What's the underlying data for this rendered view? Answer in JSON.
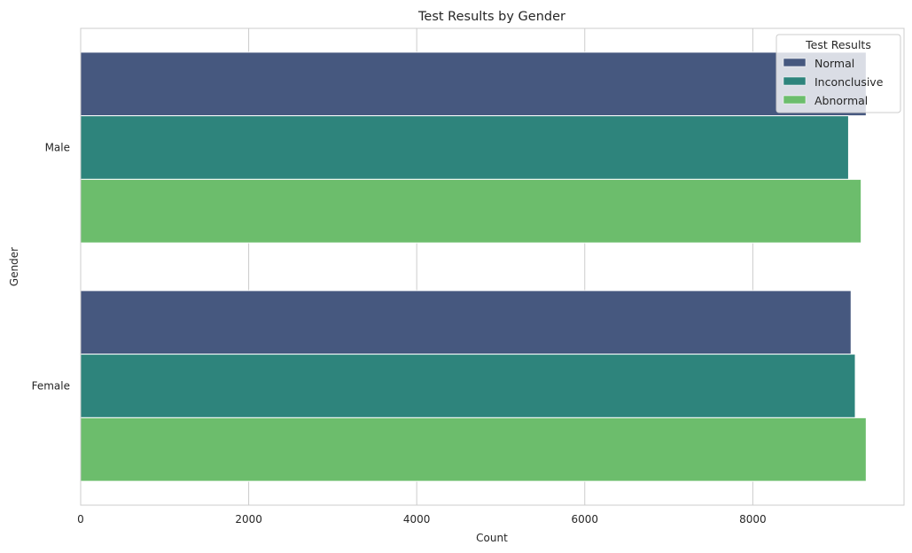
{
  "chart_data": {
    "type": "bar",
    "orientation": "horizontal",
    "title": "Test Results by Gender",
    "xlabel": "Count",
    "ylabel": "Gender",
    "categories": [
      "Male",
      "Female"
    ],
    "xlim": [
      0,
      9800
    ],
    "xticks": [
      0,
      2000,
      4000,
      6000,
      8000
    ],
    "grid": true,
    "legend": {
      "title": "Test Results",
      "placement": "top-right"
    },
    "series": [
      {
        "name": "Normal",
        "color": "#46587f",
        "values": [
          9350,
          9170
        ]
      },
      {
        "name": "Inconclusive",
        "color": "#2e847c",
        "values": [
          9140,
          9220
        ]
      },
      {
        "name": "Abnormal",
        "color": "#6cbd6c",
        "values": [
          9290,
          9350
        ]
      }
    ]
  }
}
